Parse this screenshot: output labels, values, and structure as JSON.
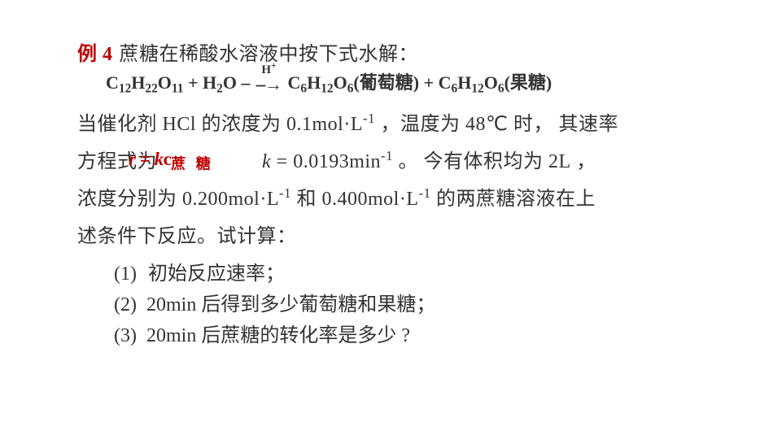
{
  "colors": {
    "accent": "#c00000",
    "text": "#333333",
    "bg": "#ffffff"
  },
  "example": {
    "label": "例 4",
    "intro": "蔗糖在稀酸水溶液中按下式水解："
  },
  "equation": {
    "lhs_sucrose": {
      "C": "C",
      "C_sub": "12",
      "H": "H",
      "H_sub": "22",
      "O": "O",
      "O_sub": "11"
    },
    "plus1": " + ",
    "water": {
      "H": "H",
      "H_sub": "2",
      "O": "O"
    },
    "dash": " –",
    "arrow_over": "H",
    "arrow_over_sup": "+",
    "arrow": "⎯→",
    "glucose": {
      "C": "C",
      "C_sub": "6",
      "H": "H",
      "H_sub": "12",
      "O": "O",
      "O_sub": "6",
      "name": "(葡萄糖)"
    },
    "plus2": " + ",
    "fructose": {
      "C": "C",
      "C_sub": "6",
      "H": "H",
      "H_sub": "12",
      "O": "O",
      "O_sub": "6",
      "name": "(果糖)"
    }
  },
  "body": {
    "p1a": "当催化剂 ",
    "p1b": "HCl",
    "p1c": " 的浓度为 ",
    "p1d": "0.1mol",
    "p1dot": "·",
    "p1e": "L",
    "p1e_sup": "-1",
    "p1f": " ，温度为 ",
    "p1g": "48℃",
    "p1h": " 时， 其速率",
    "rate_prefix": "方程式为",
    "rate_r": "r",
    "rate_eq": " = ",
    "rate_k": "k",
    "rate_c": "c",
    "rate_sub": "蔗 糖",
    "rate_gap_after": "　　　　　",
    "kline_a": "k",
    "kline_b": " = 0.0193min",
    "kline_sup": "-1",
    "kline_c": " 。 今有体积均为 ",
    "kline_d": "2L",
    "kline_e": "  ，",
    "p3a": "浓度分别为 ",
    "p3b": "0.200mol",
    "p3dot1": "·",
    "p3c": "L",
    "p3c_sup": "-1",
    "p3d": "  和 ",
    "p3e": "0.400mol",
    "p3dot2": "·",
    "p3f": "L",
    "p3f_sup": "-1",
    "p3g": "  的两蔗糖溶液在上",
    "p4": "述条件下反应。试计算："
  },
  "questions": {
    "q1": {
      "num": "(1)",
      "text": "初始反应速率；"
    },
    "q2": {
      "num": "(2)",
      "text_a": "20min",
      "text_b": " 后得到多少葡萄糖和果糖；"
    },
    "q3": {
      "num": "(3)",
      "text_a": "20min",
      "text_b": " 后蔗糖的转化率是多少 ?"
    }
  }
}
